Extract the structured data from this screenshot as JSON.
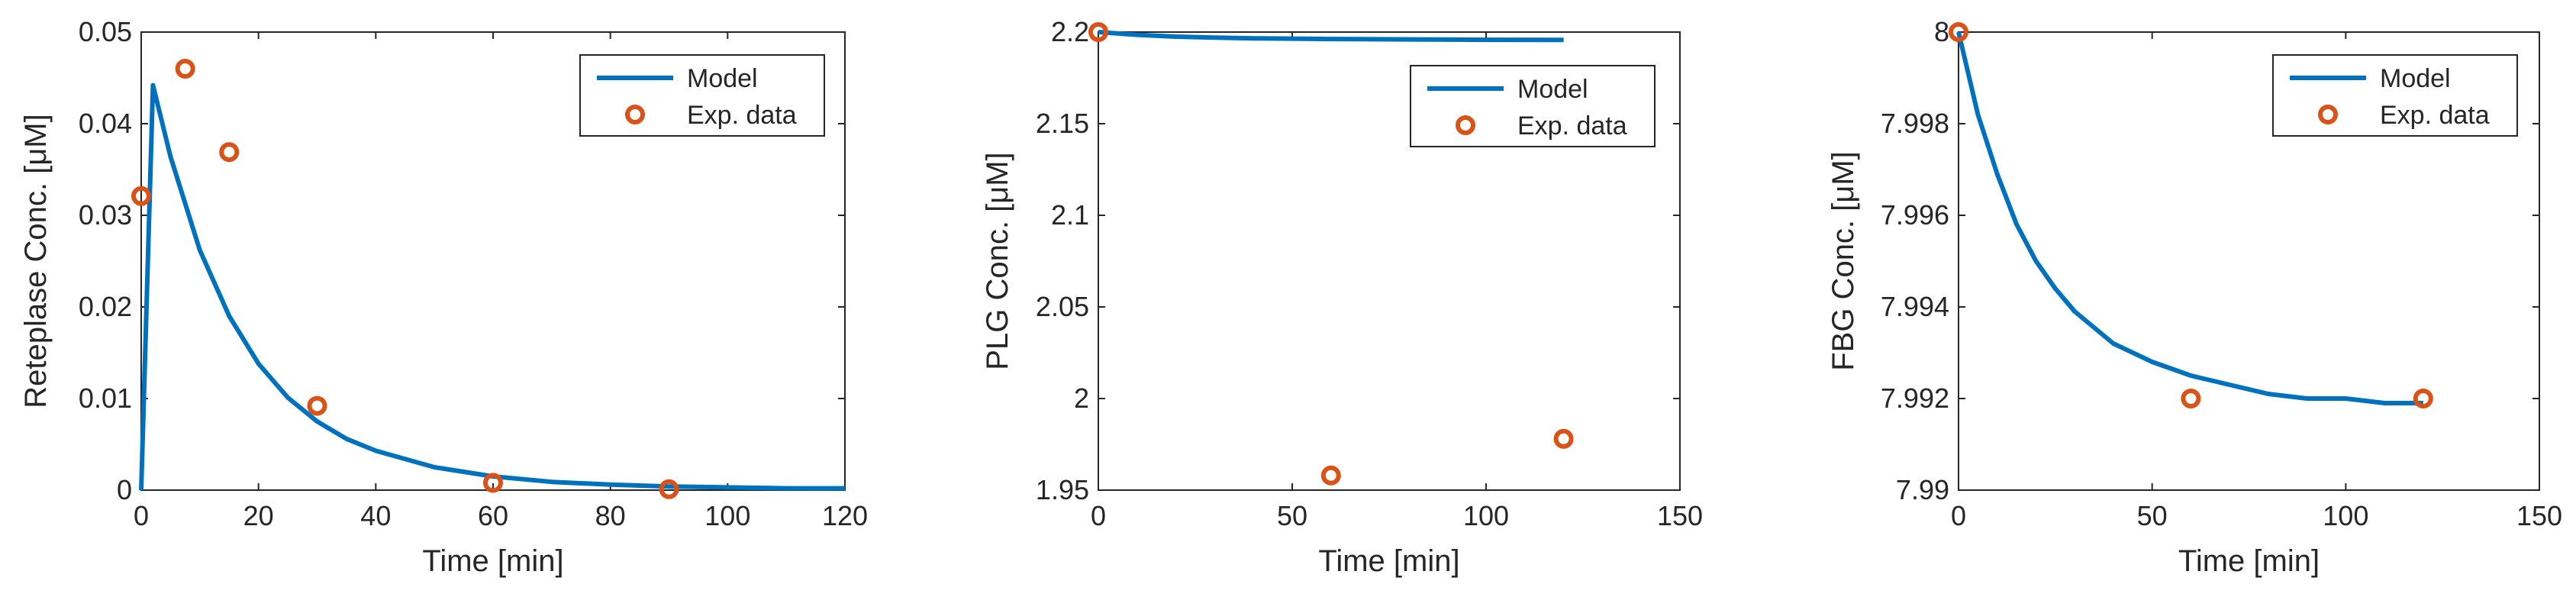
{
  "colors": {
    "model": "#0072BD",
    "data": "#D95319",
    "axis": "#262626",
    "frame": "#262626"
  },
  "chart_data": [
    {
      "type": "line",
      "title": "",
      "xlabel": "Time [min]",
      "ylabel": "Reteplase Conc. [μM]",
      "xlim": [
        0,
        120
      ],
      "ylim": [
        0,
        0.05
      ],
      "xticks": [
        0,
        20,
        40,
        60,
        80,
        100,
        120
      ],
      "xtick_labels": [
        "0",
        "20",
        "40",
        "60",
        "80",
        "100",
        "120"
      ],
      "yticks": [
        0,
        0.01,
        0.02,
        0.03,
        0.04,
        0.05
      ],
      "ytick_labels": [
        "0",
        "0.01",
        "0.02",
        "0.03",
        "0.04",
        "0.05"
      ],
      "legend": {
        "position": "top-right",
        "entries": [
          "Model",
          "Exp. data"
        ]
      },
      "series": [
        {
          "name": "Model",
          "kind": "line",
          "x": [
            0,
            2,
            5,
            10,
            15,
            20,
            25,
            30,
            35,
            40,
            50,
            60,
            70,
            80,
            90,
            100,
            110,
            120
          ],
          "y": [
            0,
            0.0442,
            0.0364,
            0.0262,
            0.019,
            0.0138,
            0.0101,
            0.0075,
            0.0056,
            0.0043,
            0.0025,
            0.0015,
            0.0009,
            0.0006,
            0.0004,
            0.0003,
            0.0002,
            0.0002
          ]
        },
        {
          "name": "Exp. data",
          "kind": "scatter",
          "x": [
            0,
            7.5,
            15,
            30,
            60,
            90
          ],
          "y": [
            0.0321,
            0.046,
            0.0369,
            0.0092,
            0.0008,
            0.0001
          ]
        }
      ]
    },
    {
      "type": "line",
      "title": "",
      "xlabel": "Time [min]",
      "ylabel": "PLG Conc. [μM]",
      "xlim": [
        0,
        150
      ],
      "ylim": [
        1.95,
        2.2
      ],
      "xticks": [
        0,
        50,
        100,
        150
      ],
      "xtick_labels": [
        "0",
        "50",
        "100",
        "150"
      ],
      "yticks": [
        1.95,
        2,
        2.05,
        2.1,
        2.15,
        2.2
      ],
      "ytick_labels": [
        "1.95",
        "2",
        "2.05",
        "2.1",
        "2.15",
        "2.2"
      ],
      "legend": {
        "position": "top-right",
        "entries": [
          "Model",
          "Exp. data"
        ]
      },
      "series": [
        {
          "name": "Model",
          "kind": "line",
          "x": [
            0,
            10,
            20,
            30,
            40,
            60,
            80,
            100,
            120
          ],
          "y": [
            2.2,
            2.1985,
            2.1975,
            2.197,
            2.1966,
            2.1962,
            2.196,
            2.1958,
            2.1957
          ]
        },
        {
          "name": "Exp. data",
          "kind": "scatter",
          "x": [
            0,
            60,
            120
          ],
          "y": [
            2.2,
            1.958,
            1.978
          ]
        }
      ]
    },
    {
      "type": "line",
      "title": "",
      "xlabel": "Time [min]",
      "ylabel": "FBG Conc. [μM]",
      "xlim": [
        0,
        150
      ],
      "ylim": [
        7.99,
        8
      ],
      "xticks": [
        0,
        50,
        100,
        150
      ],
      "xtick_labels": [
        "0",
        "50",
        "100",
        "150"
      ],
      "yticks": [
        7.99,
        7.992,
        7.994,
        7.996,
        7.998,
        8
      ],
      "ytick_labels": [
        "7.99",
        "7.992",
        "7.994",
        "7.996",
        "7.998",
        "8"
      ],
      "legend": {
        "position": "top-right",
        "entries": [
          "Model",
          "Exp. data"
        ]
      },
      "series": [
        {
          "name": "Model",
          "kind": "line",
          "x": [
            0,
            5,
            10,
            15,
            20,
            25,
            30,
            40,
            50,
            60,
            70,
            80,
            90,
            100,
            110,
            120
          ],
          "y": [
            8,
            7.9982,
            7.9969,
            7.9958,
            7.995,
            7.9944,
            7.9939,
            7.9932,
            7.9928,
            7.9925,
            7.9923,
            7.9921,
            7.992,
            7.992,
            7.9919,
            7.9919
          ]
        },
        {
          "name": "Exp. data",
          "kind": "scatter",
          "x": [
            0,
            60,
            120
          ],
          "y": [
            8,
            7.992,
            7.992
          ]
        }
      ]
    }
  ]
}
